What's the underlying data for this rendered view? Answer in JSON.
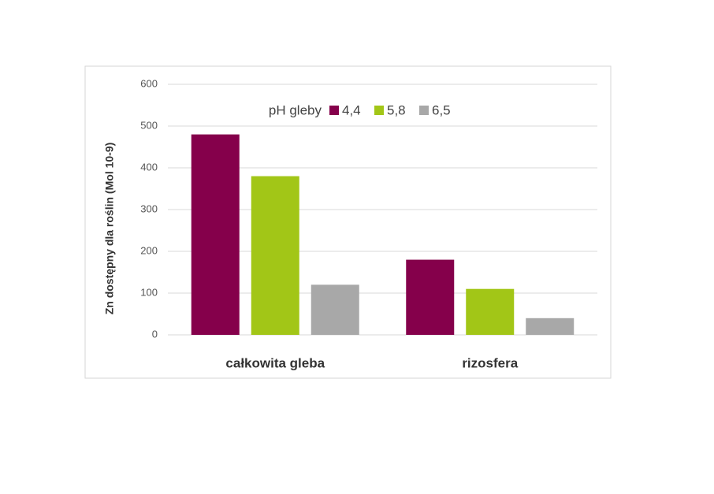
{
  "chart_data": {
    "type": "bar",
    "y_label": "Zn dostępny dla roślin (Mol 10-9)",
    "legend_title": "pH gleby",
    "categories": [
      "całkowita gleba",
      "rizosfera"
    ],
    "series": [
      {
        "name": "4,4",
        "color": "#85004b",
        "values": [
          480,
          180
        ]
      },
      {
        "name": "5,8",
        "color": "#a2c617",
        "values": [
          380,
          110
        ]
      },
      {
        "name": "6,5",
        "color": "#a8a8a8",
        "values": [
          120,
          40
        ]
      }
    ],
    "ylim": [
      0,
      600
    ],
    "yticks": [
      0,
      100,
      200,
      300,
      400,
      500,
      600
    ],
    "grid": true
  }
}
